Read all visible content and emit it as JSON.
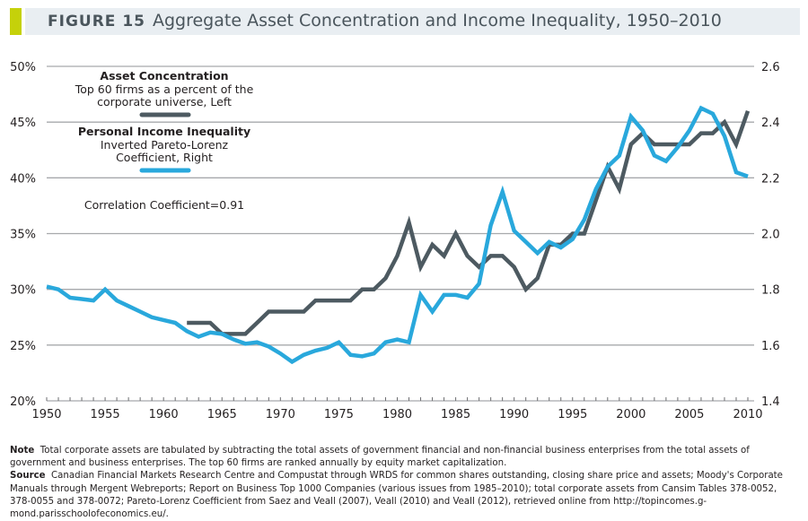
{
  "figure": {
    "label": "FIGURE 15",
    "title": "Aggregate Asset Concentration and Income Inequality, 1950–2010",
    "accent_color": "#c5d10a",
    "title_bg_color": "#e9eef2"
  },
  "notes": {
    "note_label": "Note",
    "note_text": "Total corporate assets are tabulated by subtracting the total assets of government financial and non-financial business enterprises from the total assets of government and business enterprises. The top 60 firms are ranked annually by equity market capitalization.",
    "source_label": "Source",
    "source_text": "Canadian Financial Markets Research Centre and Compustat through WRDS for common shares outstanding, closing share price and assets; Moody's Corporate Manuals through Mergent Webreports; Report on Business Top 1000 Companies (various issues from 1985–2010); total corporate assets from Cansim Tables 378-0052, 378-0055 and 378-0072; Pareto-Lorenz Coefficient from Saez and Veall (2007), Veall (2010) and Veall (2012), retrieved online from http://topincomes.g-mond.parisschoolofeconomics.eu/."
  },
  "chart_data": {
    "type": "line",
    "title": "Aggregate Asset Concentration and Income Inequality, 1950–2010",
    "xlabel": "",
    "ylabel_left": "",
    "ylabel_right": "",
    "xlim": [
      1950,
      2010
    ],
    "ylim_left": [
      20,
      50
    ],
    "ylim_right": [
      1.4,
      2.6
    ],
    "x_ticks": [
      1950,
      1955,
      1960,
      1965,
      1970,
      1975,
      1980,
      1985,
      1990,
      1995,
      2000,
      2005,
      2010
    ],
    "y_ticks_left": [
      "20%",
      "25%",
      "30%",
      "35%",
      "40%",
      "45%",
      "50%"
    ],
    "y_ticks_left_values": [
      20,
      25,
      30,
      35,
      40,
      45,
      50
    ],
    "y_ticks_right": [
      "1.4",
      "1.6",
      "1.8",
      "2.0",
      "2.2",
      "2.4",
      "2.6"
    ],
    "y_ticks_right_values": [
      1.4,
      1.6,
      1.8,
      2.0,
      2.2,
      2.4,
      2.6
    ],
    "grid": true,
    "annotation": "Correlation Coefficient=0.91",
    "series": [
      {
        "name": "Asset Concentration",
        "legend_title": "Asset Concentration",
        "legend_lines": [
          "Top 60 firms as a percent of the",
          "corporate universe, Left"
        ],
        "axis": "left",
        "color": "#4d5a61",
        "x": [
          1962,
          1963,
          1964,
          1965,
          1966,
          1967,
          1968,
          1969,
          1970,
          1971,
          1972,
          1973,
          1974,
          1975,
          1976,
          1977,
          1978,
          1979,
          1980,
          1981,
          1982,
          1983,
          1984,
          1985,
          1986,
          1987,
          1988,
          1989,
          1990,
          1991,
          1992,
          1993,
          1994,
          1995,
          1996,
          1997,
          1998,
          1999,
          2000,
          2001,
          2002,
          2003,
          2004,
          2005,
          2006,
          2007,
          2008,
          2009,
          2010
        ],
        "values": [
          27,
          27,
          27,
          26,
          26,
          26,
          27,
          28,
          28,
          28,
          28,
          29,
          29,
          29,
          29,
          30,
          30,
          31,
          33,
          36,
          32,
          34,
          33,
          35,
          33,
          32,
          33,
          33,
          32,
          30,
          31,
          34,
          34,
          35,
          35,
          38,
          41,
          39,
          43,
          44,
          43,
          43,
          43,
          43,
          44,
          44,
          45,
          43,
          46
        ]
      },
      {
        "name": "Personal Income Inequality",
        "legend_title": "Personal Income Inequality",
        "legend_lines": [
          "Inverted Pareto-Lorenz",
          "Coefficient, Right"
        ],
        "axis": "right",
        "color": "#29a8dc",
        "x": [
          1950,
          1951,
          1952,
          1953,
          1954,
          1955,
          1956,
          1957,
          1958,
          1959,
          1960,
          1961,
          1962,
          1963,
          1964,
          1965,
          1966,
          1967,
          1968,
          1969,
          1970,
          1971,
          1972,
          1973,
          1974,
          1975,
          1976,
          1977,
          1978,
          1979,
          1980,
          1981,
          1982,
          1983,
          1984,
          1985,
          1986,
          1987,
          1988,
          1989,
          1990,
          1991,
          1992,
          1993,
          1994,
          1995,
          1996,
          1997,
          1998,
          1999,
          2000,
          2001,
          2002,
          2003,
          2004,
          2005,
          2006,
          2007,
          2008,
          2009,
          2010
        ],
        "values": [
          1.81,
          1.8,
          1.77,
          1.765,
          1.76,
          1.8,
          1.76,
          1.74,
          1.72,
          1.7,
          1.69,
          1.68,
          1.65,
          1.63,
          1.645,
          1.64,
          1.62,
          1.605,
          1.61,
          1.595,
          1.57,
          1.54,
          1.565,
          1.58,
          1.59,
          1.61,
          1.565,
          1.56,
          1.57,
          1.61,
          1.62,
          1.61,
          1.78,
          1.72,
          1.78,
          1.78,
          1.77,
          1.82,
          2.03,
          2.15,
          2.01,
          1.97,
          1.93,
          1.97,
          1.95,
          1.98,
          2.05,
          2.16,
          2.24,
          2.28,
          2.42,
          2.37,
          2.28,
          2.26,
          2.31,
          2.37,
          2.45,
          2.43,
          2.35,
          2.22,
          2.205
        ]
      }
    ]
  }
}
